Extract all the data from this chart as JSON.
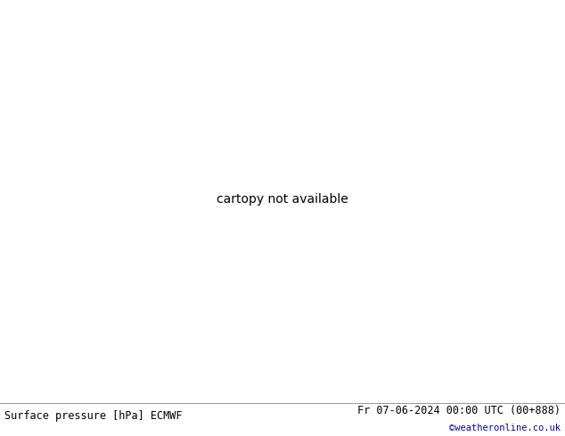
{
  "title_left": "Surface pressure [hPa] ECMWF",
  "title_right": "Fr 07-06-2024 00:00 UTC (00+888)",
  "credit": "©weatheronline.co.uk",
  "ocean_color": "#d8d8d8",
  "land_color": "#b0d890",
  "mountain_color": "#b0b0b0",
  "border_color": "#888888",
  "coast_color": "#888888",
  "bottom_bg": "#ffffff",
  "text_color": "#000000",
  "credit_color": "#0000cc",
  "c_black": "#000000",
  "c_red": "#cc0000",
  "c_blue": "#0044cc",
  "figsize": [
    6.34,
    4.9
  ],
  "dpi": 100,
  "map_extent": [
    -45,
    50,
    27,
    73
  ],
  "label_fontsize": 7,
  "contour_lw": 1.2
}
